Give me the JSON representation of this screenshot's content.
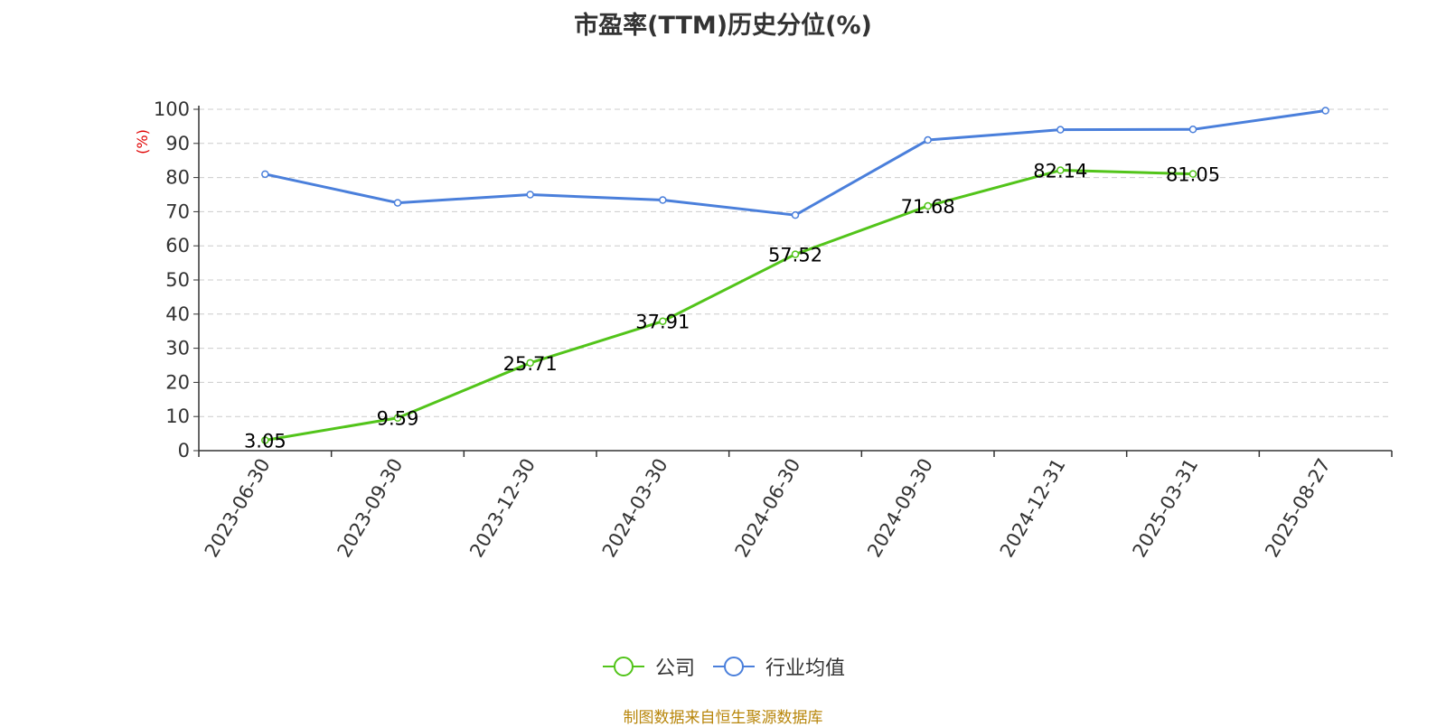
{
  "title": "市盈率(TTM)历史分位(%)",
  "source": "制图数据来自恒生聚源数据库",
  "chart_data": {
    "type": "line",
    "title": "市盈率(TTM)历史分位(%)",
    "ylabel": "(%)",
    "xlabel": "",
    "ylim": [
      0,
      100
    ],
    "yticks": [
      0,
      10,
      20,
      30,
      40,
      50,
      60,
      70,
      80,
      90,
      100
    ],
    "grid": true,
    "legend_position": "bottom",
    "x": [
      "2023-06-30",
      "2023-09-30",
      "2023-12-30",
      "2024-03-30",
      "2024-06-30",
      "2024-09-30",
      "2024-12-31",
      "2025-03-31",
      "2025-08-27"
    ],
    "series": [
      {
        "name": "公司",
        "color": "#52c41a",
        "values": [
          3.05,
          9.59,
          25.71,
          37.91,
          57.52,
          71.68,
          82.14,
          81.05,
          null
        ],
        "labels": [
          "3.05",
          "9.59",
          "25.71",
          "37.91",
          "57.52",
          "71.68",
          "82.14",
          "81.05",
          ""
        ]
      },
      {
        "name": "行业均值",
        "color": "#4a7fdb",
        "values": [
          81,
          72.6,
          75,
          73.4,
          69,
          91,
          94,
          94.1,
          99.6
        ],
        "labels": []
      }
    ]
  }
}
